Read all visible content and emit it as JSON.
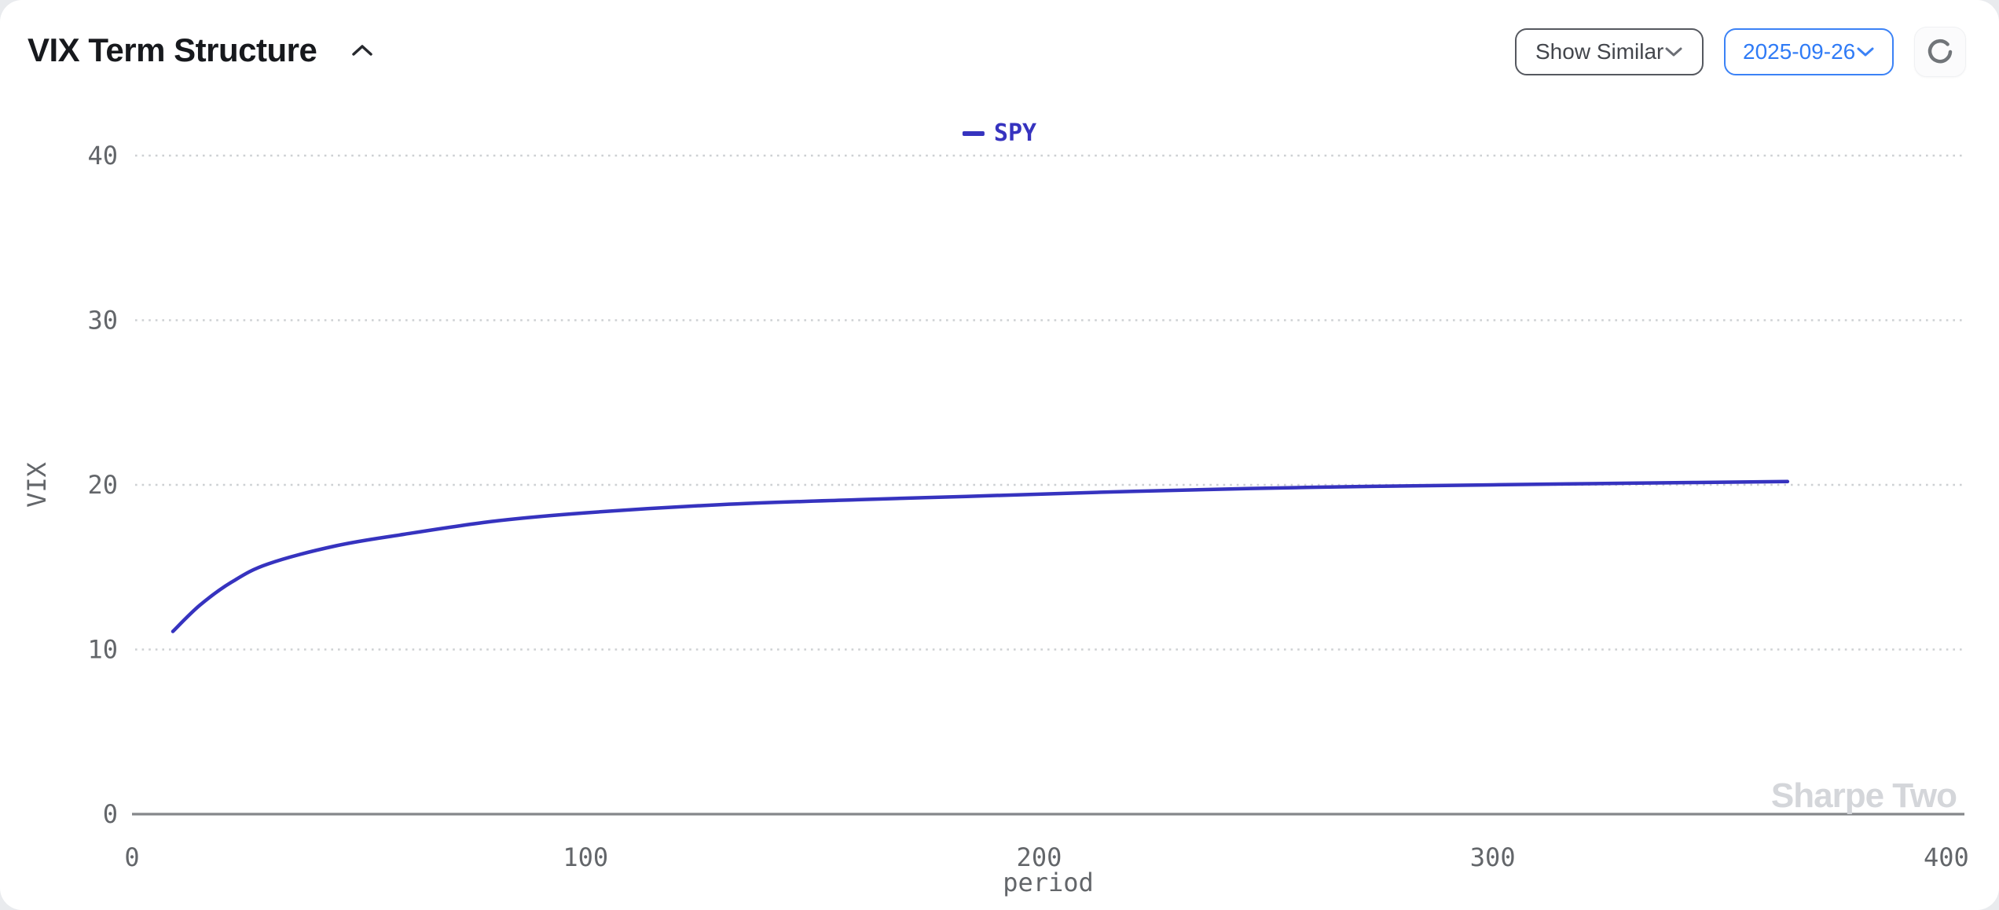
{
  "header": {
    "title": "VIX Term Structure",
    "show_similar_label": "Show Similar",
    "date_value": "2025-09-26"
  },
  "watermark": "Sharpe Two",
  "colors": {
    "series": "#3633bf",
    "accent_blue": "#2f7bf6",
    "axis_line": "#85878a",
    "grid_line": "#cdd0d3",
    "tick_text": "#63666a",
    "watermark": "#d4d6da"
  },
  "chart_data": {
    "type": "line",
    "title": "VIX Term Structure",
    "xlabel": "period",
    "ylabel": "VIX",
    "xlim": [
      0,
      404
    ],
    "ylim": [
      0,
      42
    ],
    "xticks": [
      0,
      100,
      200,
      300,
      400
    ],
    "yticks": [
      0,
      10,
      20,
      30,
      40
    ],
    "grid": "horizontal-dotted",
    "legend_position": "top-center",
    "series": [
      {
        "name": "SPY",
        "color": "#3633bf",
        "points": [
          [
            9,
            11.1
          ],
          [
            15,
            12.7
          ],
          [
            22,
            14.1
          ],
          [
            30,
            15.2
          ],
          [
            45,
            16.3
          ],
          [
            60,
            17.0
          ],
          [
            80,
            17.8
          ],
          [
            100,
            18.3
          ],
          [
            130,
            18.8
          ],
          [
            160,
            19.1
          ],
          [
            184,
            19.3
          ],
          [
            220,
            19.6
          ],
          [
            260,
            19.85
          ],
          [
            300,
            20.0
          ],
          [
            330,
            20.1
          ],
          [
            365,
            20.2
          ]
        ]
      }
    ]
  }
}
